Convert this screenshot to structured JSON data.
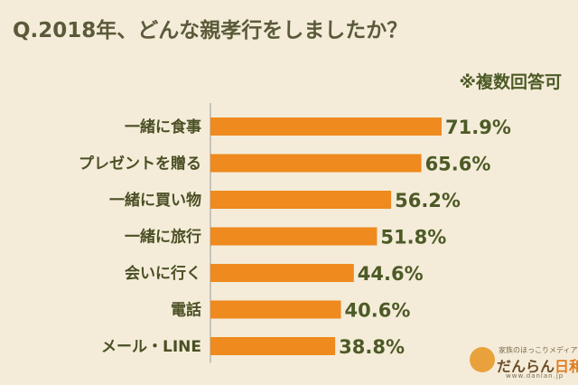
{
  "title": "Q.2018年、どんな親孝行をしましたか？",
  "note": "※複数回答可",
  "colors": {
    "bar": "#ee8a1e",
    "background": "#f4ecd9",
    "text": "#4d5a26"
  },
  "chart_data": {
    "type": "bar",
    "orientation": "horizontal",
    "categories": [
      "一緒に食事",
      "プレゼントを贈る",
      "一緒に買い物",
      "一緒に旅行",
      "会いに行く",
      "電話",
      "メール・LINE"
    ],
    "values": [
      71.9,
      65.6,
      56.2,
      51.8,
      44.6,
      40.6,
      38.8
    ],
    "value_labels": [
      "71.9%",
      "65.6%",
      "56.2%",
      "51.8%",
      "44.6%",
      "40.6%",
      "38.8%"
    ],
    "xlim": [
      0,
      100
    ],
    "grid": false
  },
  "logo": {
    "tagline": "家族のほっこりメディア",
    "name_part1": "だんらん",
    "name_part2": "日和",
    "url": "www.danlan.jp"
  }
}
